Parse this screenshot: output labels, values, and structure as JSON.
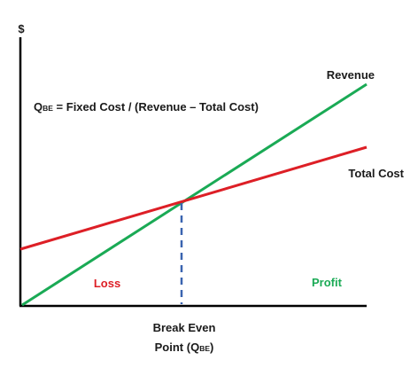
{
  "diagram": {
    "axis_symbol": "$",
    "formula": {
      "q_main": "Q",
      "q_sub": "BE",
      "rest": " = Fixed Cost / (Revenue – Total Cost)"
    },
    "labels": {
      "revenue": "Revenue",
      "total_cost": "Total Cost",
      "loss": "Loss",
      "profit": "Profit",
      "break_even_line1": "Break Even",
      "break_even_line2_prefix": "Point (Q",
      "break_even_line2_sub": "BE",
      "break_even_line2_suffix": ")"
    },
    "colors": {
      "axis": "#000000",
      "revenue_line": "#1aaa55",
      "total_cost_line": "#dd1f26",
      "break_even_marker": "#3a64b0",
      "loss_text": "#dd1f26",
      "profit_text": "#1aaa55"
    }
  }
}
